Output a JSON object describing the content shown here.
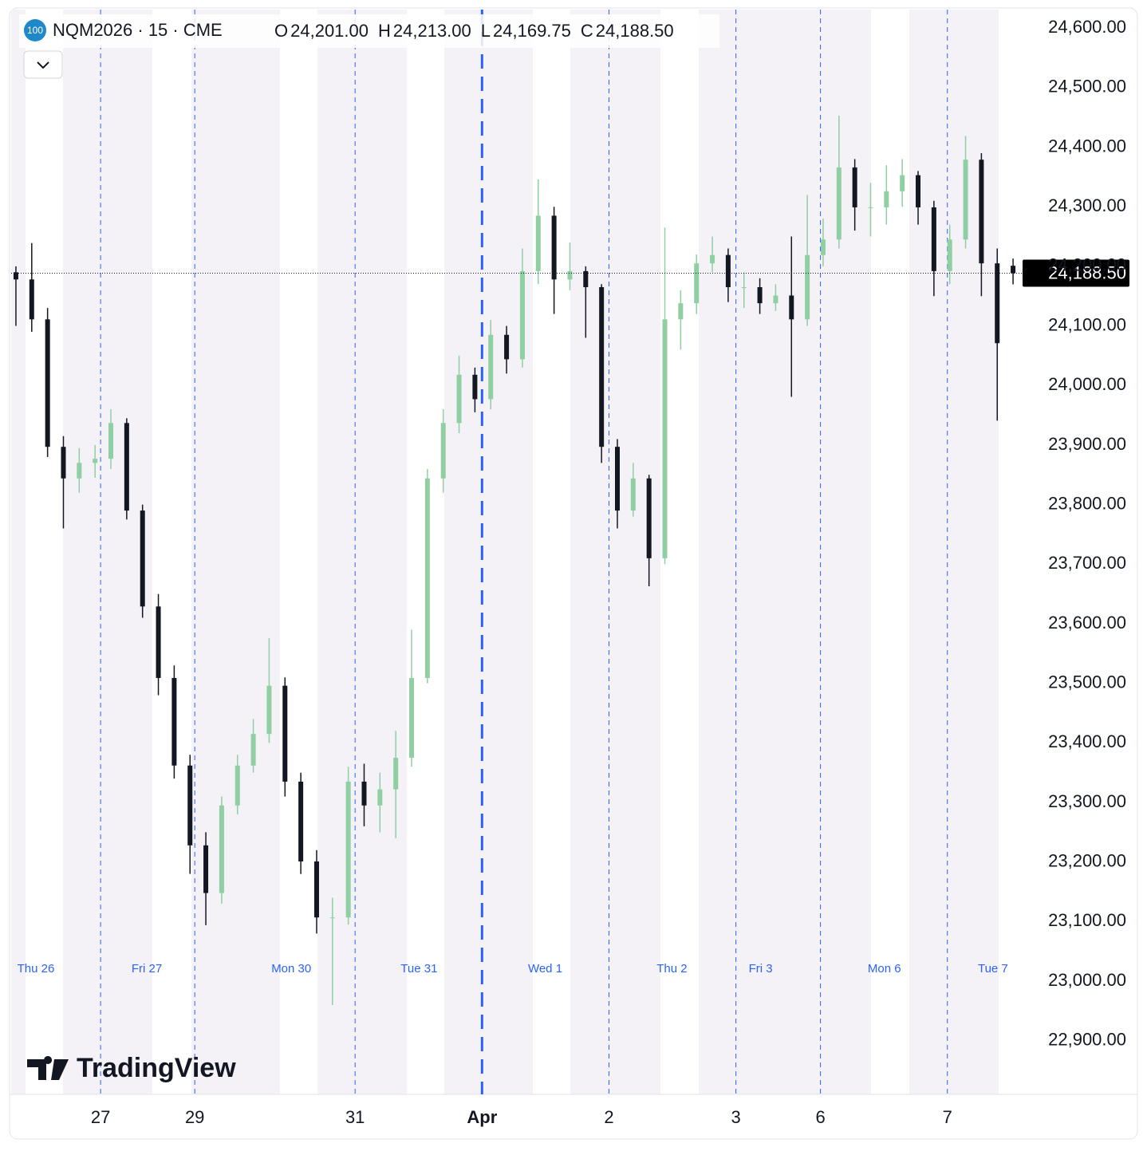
{
  "chart_data": {
    "type": "candlestick",
    "title": "NQM2026 · 15 · CME",
    "badge": "100",
    "legend_ohlc": [
      {
        "label": "O",
        "value": "24,201.00"
      },
      {
        "label": "H",
        "value": "24,213.00"
      },
      {
        "label": "L",
        "value": "24,169.75"
      },
      {
        "label": "C",
        "value": "24,188.50"
      }
    ],
    "watermark": "TradingView",
    "x": [
      0,
      1,
      2,
      3,
      4,
      5,
      6,
      7,
      8,
      9,
      10,
      11,
      12,
      13,
      14,
      15,
      16,
      17,
      18,
      19,
      20,
      21,
      22,
      23,
      24,
      25,
      26,
      27,
      28,
      29,
      30,
      31,
      32,
      33,
      34,
      35,
      36,
      37,
      38,
      39,
      40,
      41,
      42,
      43,
      44,
      45,
      46,
      47,
      48,
      49,
      50,
      51,
      52,
      53,
      54,
      55,
      56,
      57,
      58,
      59,
      60,
      61,
      62,
      63
    ],
    "open": [
      24190,
      24178,
      24111,
      23897,
      23844,
      23870,
      23877,
      23937,
      23790,
      23629,
      23509,
      23362,
      23228,
      23148,
      23295,
      23362,
      23415,
      23496,
      23335,
      23201,
      23107,
      23107,
      23335,
      23295,
      23322,
      23375,
      23509,
      23844,
      23937,
      24018,
      23977,
      24085,
      24044,
      24192,
      24285,
      24178,
      24192,
      24165,
      23897,
      23790,
      23844,
      23710,
      24111,
      24138,
      24205,
      24219,
      24165,
      24165,
      24138,
      24151,
      24111,
      24219,
      24245,
      24366,
      24299,
      24299,
      24326,
      24353,
      24299,
      24192,
      24245,
      24379,
      24205,
      24201
    ],
    "high": [
      24200,
      24239,
      24130,
      23915,
      23895,
      23900,
      23960,
      23945,
      23800,
      23650,
      23530,
      23380,
      23250,
      23310,
      23380,
      23440,
      23576,
      23510,
      23350,
      23220,
      23140,
      23360,
      23365,
      23350,
      23420,
      23590,
      23860,
      23960,
      24050,
      24030,
      24110,
      24100,
      24230,
      24346,
      24300,
      24240,
      24200,
      24170,
      23910,
      23870,
      23850,
      24265,
      24160,
      24220,
      24250,
      24230,
      24190,
      24180,
      24170,
      24250,
      24320,
      24280,
      24453,
      24380,
      24340,
      24370,
      24380,
      24360,
      24310,
      24270,
      24419,
      24390,
      24230,
      24213
    ],
    "low": [
      24100,
      24090,
      23880,
      23760,
      23820,
      23845,
      23860,
      23775,
      23610,
      23480,
      23340,
      23180,
      23094,
      23130,
      23280,
      23350,
      23400,
      23310,
      23180,
      23080,
      22960,
      23095,
      23260,
      23250,
      23240,
      23360,
      23500,
      23820,
      23920,
      23955,
      23960,
      24020,
      24030,
      24170,
      24120,
      24160,
      24080,
      23870,
      23760,
      23780,
      23663,
      23700,
      24060,
      24120,
      24190,
      24140,
      24130,
      24120,
      24125,
      23981,
      24100,
      24200,
      24230,
      24260,
      24250,
      24270,
      24300,
      24270,
      24150,
      24170,
      24230,
      24150,
      23941,
      24169.75
    ],
    "close": [
      24178,
      24111,
      23897,
      23844,
      23870,
      23877,
      23937,
      23790,
      23629,
      23509,
      23362,
      23228,
      23148,
      23295,
      23362,
      23415,
      23496,
      23335,
      23201,
      23107,
      23107,
      23335,
      23295,
      23322,
      23375,
      23509,
      23844,
      23937,
      24018,
      23977,
      24085,
      24044,
      24192,
      24285,
      24178,
      24192,
      24165,
      23897,
      23790,
      23844,
      23710,
      24111,
      24138,
      24205,
      24219,
      24165,
      24165,
      24138,
      24151,
      24111,
      24219,
      24245,
      24366,
      24299,
      24299,
      24326,
      24353,
      24299,
      24192,
      24245,
      24379,
      24205,
      24071,
      24188.5
    ],
    "up_color": "#8fcfa3",
    "down_color": "#131722",
    "xlim": [
      -0.3,
      63.5
    ],
    "xticks": [
      {
        "value": 5.35,
        "label": "27"
      },
      {
        "value": 11.3,
        "label": "29"
      },
      {
        "value": 21.43,
        "label": "31"
      },
      {
        "value": 29.45,
        "label": "Apr",
        "bold": true
      },
      {
        "value": 37.47,
        "label": "2"
      },
      {
        "value": 45.49,
        "label": "3"
      },
      {
        "value": 50.83,
        "label": "6"
      },
      {
        "value": 58.85,
        "label": "7"
      }
    ],
    "sessions": [
      {
        "value": 1.26,
        "label": "Thu 26"
      },
      {
        "value": 8.27,
        "label": "Fri 27"
      },
      {
        "value": 17.4,
        "label": "Mon 30"
      },
      {
        "value": 25.47,
        "label": "Tue 31"
      },
      {
        "value": 33.44,
        "label": "Wed 1"
      },
      {
        "value": 41.45,
        "label": "Thu 2"
      },
      {
        "value": 47.05,
        "label": "Fri 3"
      },
      {
        "value": 54.87,
        "label": "Mon 6"
      },
      {
        "value": 61.73,
        "label": "Tue 7"
      }
    ],
    "ylim": [
      22810,
      24631
    ],
    "yticks": [
      {
        "value": 22900,
        "label": "22,900.00"
      },
      {
        "value": 23000,
        "label": "23,000.00"
      },
      {
        "value": 23100,
        "label": "23,100.00"
      },
      {
        "value": 23200,
        "label": "23,200.00"
      },
      {
        "value": 23300,
        "label": "23,300.00"
      },
      {
        "value": 23400,
        "label": "23,400.00"
      },
      {
        "value": 23500,
        "label": "23,500.00"
      },
      {
        "value": 23600,
        "label": "23,600.00"
      },
      {
        "value": 23700,
        "label": "23,700.00"
      },
      {
        "value": 23800,
        "label": "23,800.00"
      },
      {
        "value": 23900,
        "label": "23,900.00"
      },
      {
        "value": 24000,
        "label": "24,000.00"
      },
      {
        "value": 24100,
        "label": "24,100.00"
      },
      {
        "value": 24200,
        "label": "24,200.00"
      },
      {
        "value": 24300,
        "label": "24,300.00"
      },
      {
        "value": 24400,
        "label": "24,400.00"
      },
      {
        "value": 24500,
        "label": "24,500.00"
      },
      {
        "value": 24600,
        "label": "24,600.00"
      }
    ],
    "last_price": {
      "value": 24188.5,
      "label": "24,188.50"
    },
    "grid": false
  }
}
